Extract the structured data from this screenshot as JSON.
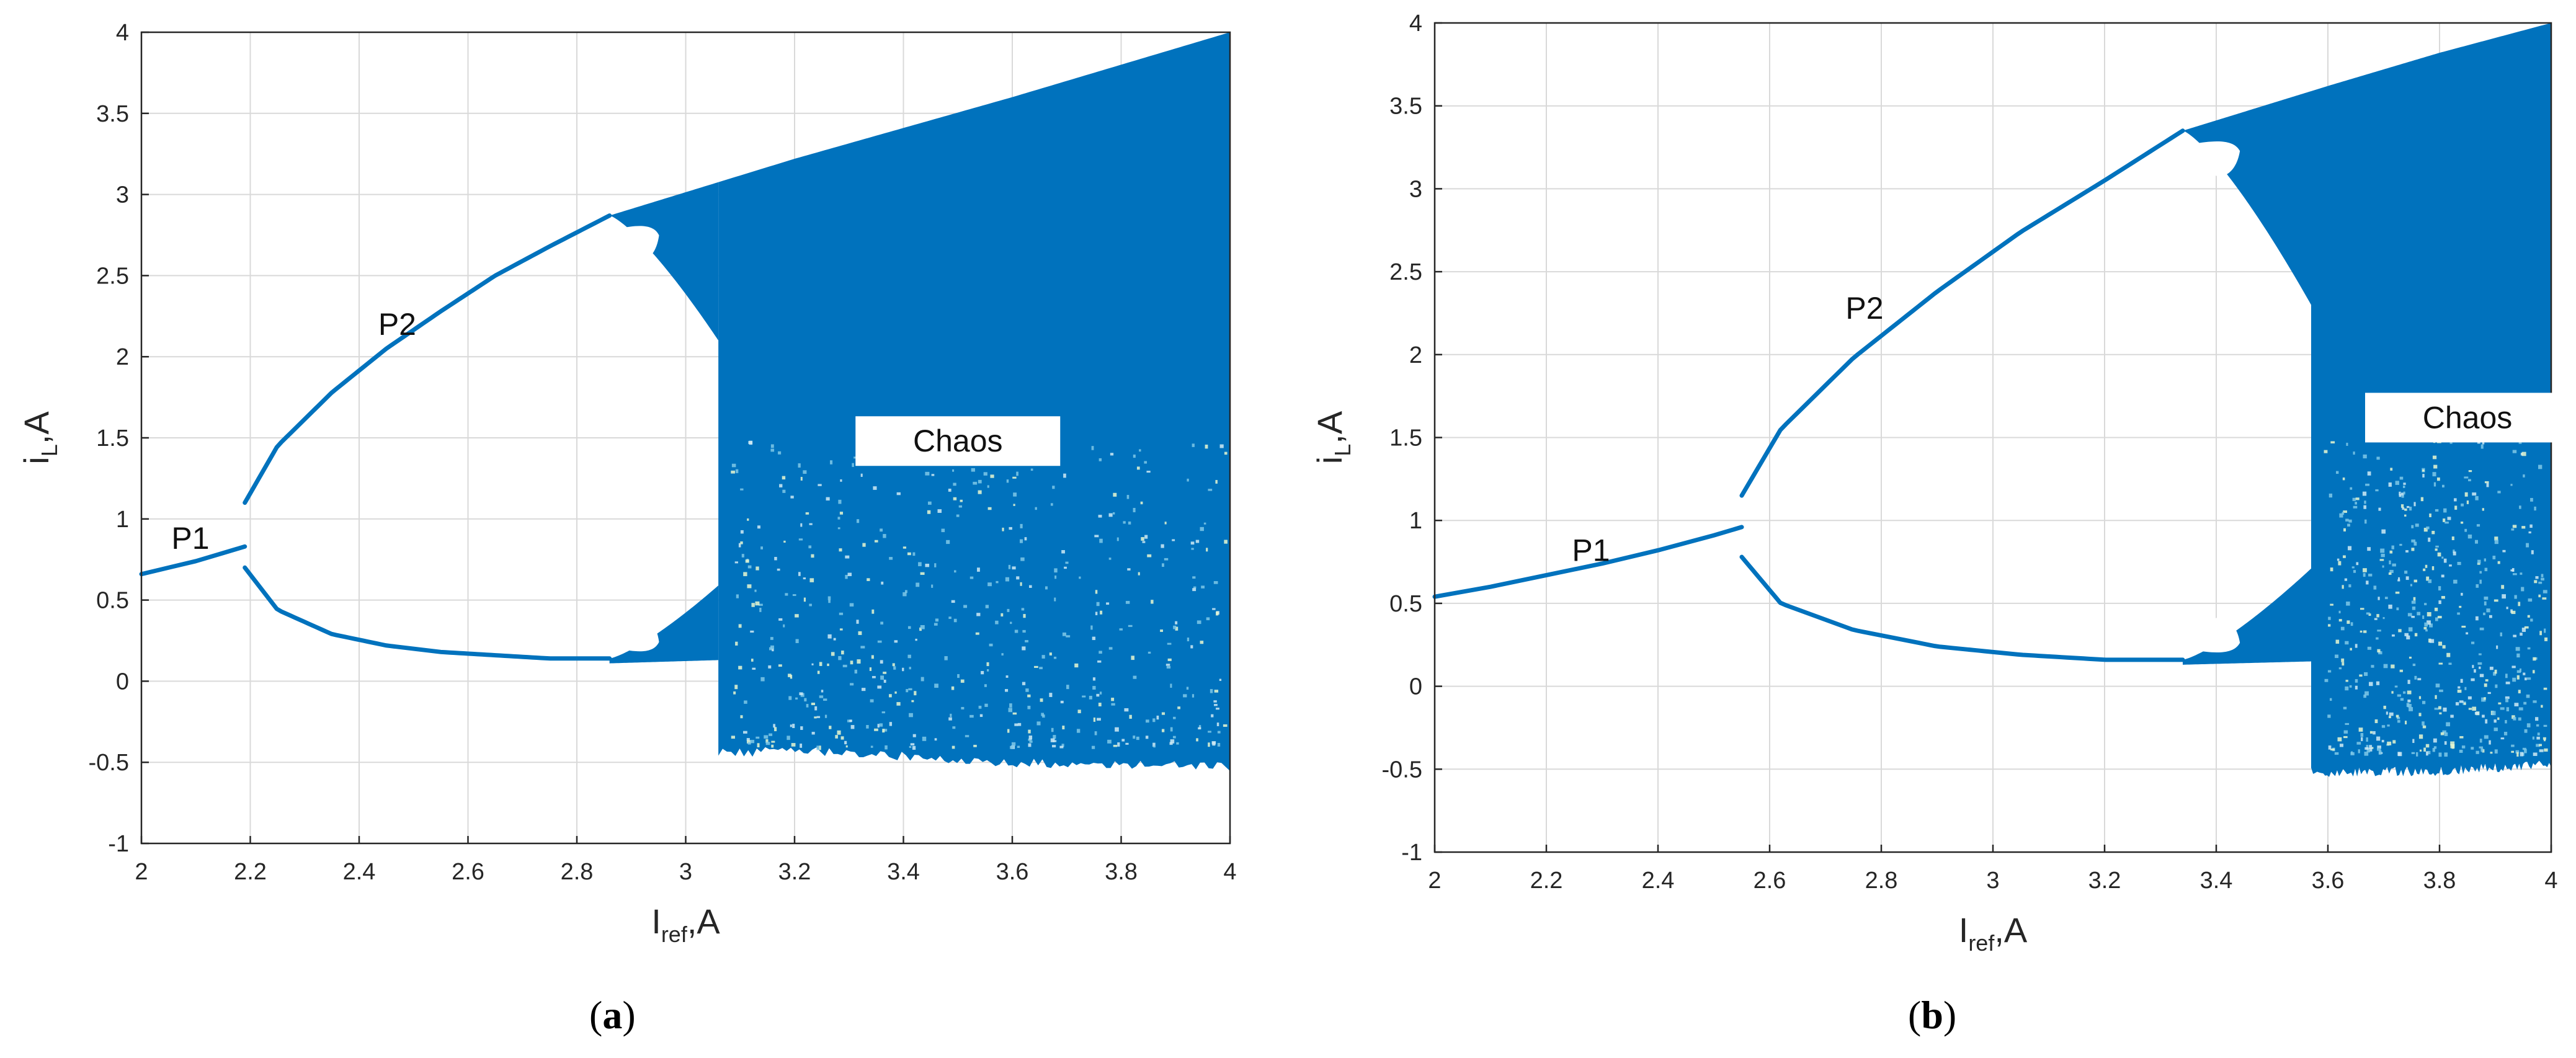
{
  "colors": {
    "series": "#0072BD",
    "grid": "#d9d9d9",
    "axis": "#262626",
    "background": "#ffffff"
  },
  "panels": [
    {
      "label": "a"
    },
    {
      "label": "b"
    }
  ],
  "chart_data": [
    {
      "type": "scatter",
      "subtype": "bifurcation-diagram",
      "title": "",
      "xlabel": {
        "main": "I",
        "sub": "ref",
        "unit": ",A"
      },
      "ylabel": {
        "main": "i",
        "sub": "L",
        "unit": ",A"
      },
      "xlim": [
        2,
        4
      ],
      "ylim": [
        -1,
        4
      ],
      "xticks": [
        "2",
        "2.2",
        "2.4",
        "2.6",
        "2.8",
        "3",
        "3.2",
        "3.4",
        "3.6",
        "3.8",
        "4"
      ],
      "yticks": [
        "-1",
        "-0.5",
        "0",
        "0.5",
        "1",
        "1.5",
        "2",
        "2.5",
        "3",
        "3.5",
        "4"
      ],
      "grid": true,
      "series": [
        {
          "region": "P1",
          "x": [
            2.0,
            2.05,
            2.1,
            2.15,
            2.19
          ],
          "y": [
            0.66,
            0.7,
            0.74,
            0.79,
            0.83
          ]
        },
        {
          "region": "P2 upper",
          "x": [
            2.19,
            2.25,
            2.35,
            2.45,
            2.55,
            2.65,
            2.75,
            2.86
          ],
          "y": [
            1.1,
            1.45,
            1.78,
            2.05,
            2.28,
            2.5,
            2.68,
            2.87
          ]
        },
        {
          "region": "P2 lower",
          "x": [
            2.19,
            2.25,
            2.35,
            2.45,
            2.55,
            2.65,
            2.75,
            2.86
          ],
          "y": [
            0.7,
            0.44,
            0.29,
            0.22,
            0.18,
            0.16,
            0.14,
            0.14
          ]
        },
        {
          "region": "Chaos upper envelope",
          "x": [
            2.86,
            3.2,
            3.6,
            4.0
          ],
          "y": [
            2.87,
            3.22,
            3.6,
            4.0
          ]
        },
        {
          "region": "Chaos lower envelope",
          "x": [
            3.06,
            3.2,
            3.6,
            4.0
          ],
          "y": [
            -0.44,
            -0.43,
            -0.5,
            -0.53
          ]
        }
      ],
      "annotations": [
        {
          "text": "P1",
          "x": 2.09,
          "y": 0.88
        },
        {
          "text": "P2",
          "x": 2.47,
          "y": 2.2
        },
        {
          "text": "Chaos",
          "x": 3.5,
          "y": 1.48,
          "boxed": true
        }
      ]
    },
    {
      "type": "scatter",
      "subtype": "bifurcation-diagram",
      "title": "",
      "xlabel": {
        "main": "I",
        "sub": "ref",
        "unit": ",A"
      },
      "ylabel": {
        "main": "i",
        "sub": "L",
        "unit": ",A"
      },
      "xlim": [
        2,
        4
      ],
      "ylim": [
        -1,
        4
      ],
      "xticks": [
        "2",
        "2.2",
        "2.4",
        "2.6",
        "2.8",
        "3",
        "3.2",
        "3.4",
        "3.6",
        "3.8",
        "4"
      ],
      "yticks": [
        "-1",
        "-0.5",
        "0",
        "0.5",
        "1",
        "1.5",
        "2",
        "2.5",
        "3",
        "3.5",
        "4"
      ],
      "grid": true,
      "series": [
        {
          "region": "P1",
          "x": [
            2.0,
            2.1,
            2.2,
            2.3,
            2.4,
            2.5,
            2.55
          ],
          "y": [
            0.54,
            0.6,
            0.67,
            0.74,
            0.82,
            0.91,
            0.96
          ]
        },
        {
          "region": "P2 upper",
          "x": [
            2.55,
            2.62,
            2.75,
            2.9,
            3.05,
            3.2,
            3.34
          ],
          "y": [
            1.15,
            1.55,
            1.98,
            2.38,
            2.74,
            3.05,
            3.35
          ]
        },
        {
          "region": "P2 lower",
          "x": [
            2.55,
            2.62,
            2.75,
            2.9,
            3.05,
            3.2,
            3.34
          ],
          "y": [
            0.78,
            0.5,
            0.34,
            0.24,
            0.19,
            0.16,
            0.16
          ]
        },
        {
          "region": "Chaos upper envelope",
          "x": [
            3.34,
            3.6,
            3.8,
            4.0
          ],
          "y": [
            3.35,
            3.62,
            3.82,
            4.0
          ]
        },
        {
          "region": "Chaos lower envelope",
          "x": [
            3.57,
            3.6,
            3.8,
            4.0
          ],
          "y": [
            -0.52,
            -0.52,
            -0.51,
            -0.47
          ]
        }
      ],
      "annotations": [
        {
          "text": "P1",
          "x": 2.28,
          "y": 0.82
        },
        {
          "text": "P2",
          "x": 2.77,
          "y": 2.28
        },
        {
          "text": "Chaos",
          "x": 3.85,
          "y": 1.62,
          "boxed": true
        }
      ]
    }
  ]
}
